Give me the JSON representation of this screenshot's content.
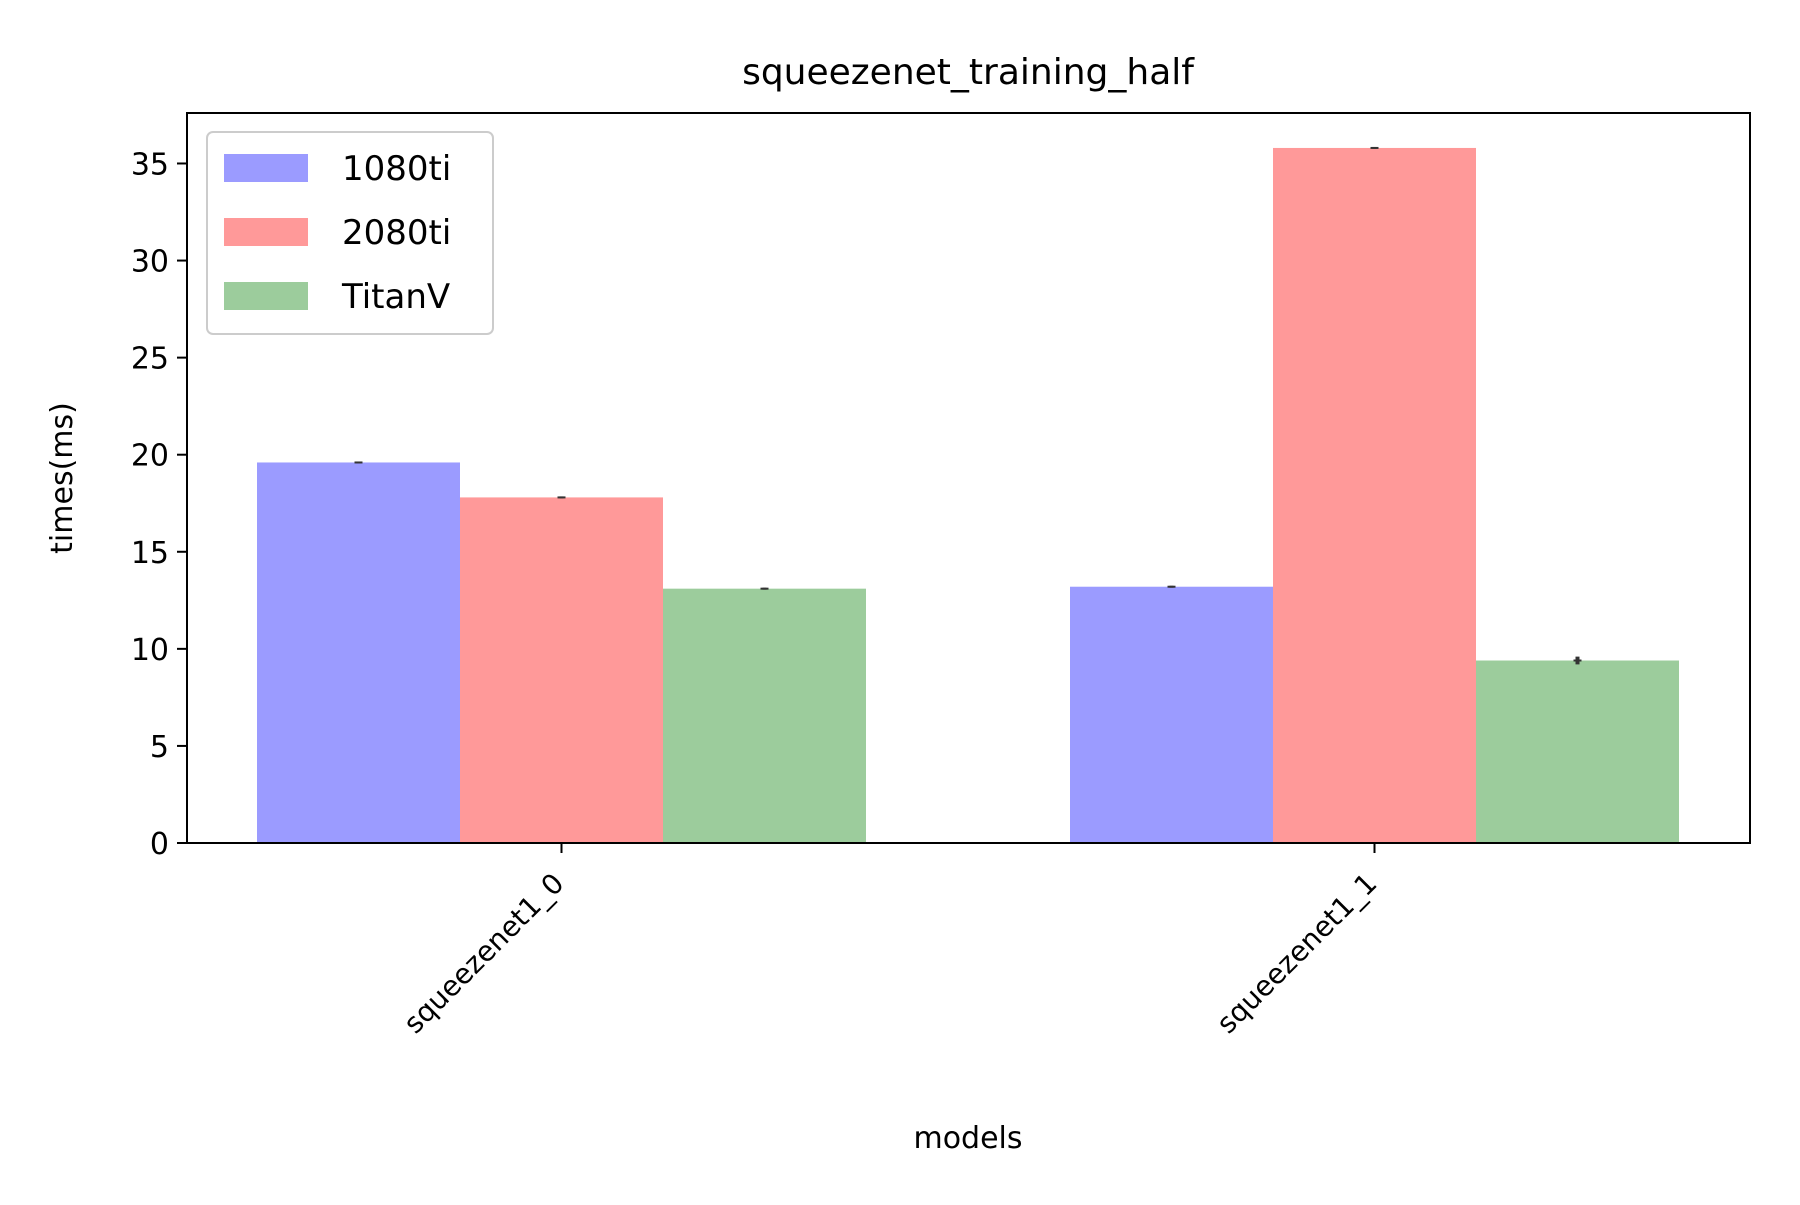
{
  "chart_data": {
    "type": "bar",
    "title": "squeezenet_training_half",
    "xlabel": "models",
    "ylabel": "times(ms)",
    "categories": [
      "squeezenet1_0",
      "squeezenet1_1"
    ],
    "series": [
      {
        "name": "1080ti",
        "values": [
          19.6,
          13.2
        ],
        "errors": [
          0.05,
          0.05
        ],
        "color": "#9b9bff"
      },
      {
        "name": "2080ti",
        "values": [
          17.8,
          35.8
        ],
        "errors": [
          0.05,
          0.05
        ],
        "color": "#ff9999"
      },
      {
        "name": "TitanV",
        "values": [
          13.1,
          9.4
        ],
        "errors": [
          0.05,
          0.2
        ],
        "color": "#9ccc9c"
      }
    ],
    "yticks": [
      0,
      5,
      10,
      15,
      20,
      25,
      30,
      35
    ],
    "ylim": [
      0,
      37.6
    ],
    "grid": false,
    "legend": "upper-left"
  }
}
